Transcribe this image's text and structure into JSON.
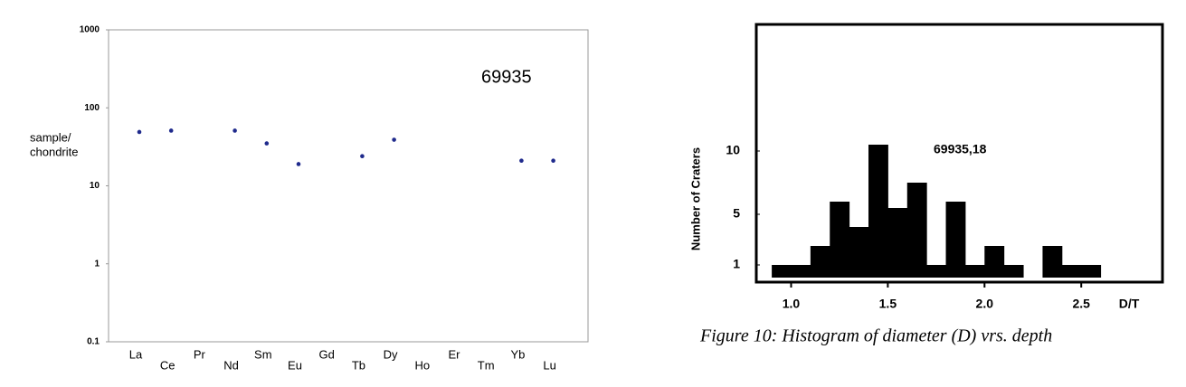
{
  "chart_data": [
    {
      "type": "scatter",
      "log_y": true,
      "ylabel": [
        "sample/",
        "chondrite"
      ],
      "annotation": "69935",
      "categories": [
        "La",
        "Ce",
        "Pr",
        "Nd",
        "Sm",
        "Eu",
        "Gd",
        "Tb",
        "Dy",
        "Ho",
        "Er",
        "Tm",
        "Yb",
        "Lu"
      ],
      "values": [
        49,
        51,
        null,
        51,
        35,
        19,
        null,
        24,
        39,
        null,
        null,
        null,
        21,
        21
      ],
      "color": "#1f2a8c",
      "ylim": [
        0.1,
        1000
      ],
      "yticks": [
        0.1,
        1,
        10,
        100,
        1000
      ]
    },
    {
      "type": "histogram",
      "ylabel": "Number of Craters",
      "xlabel": "D/T",
      "annotation": "69935,18",
      "caption": "Figure 10:  Histogram of diameter (D) vrs. depth",
      "bins": [
        0.9,
        1,
        1.1,
        1.2,
        1.3,
        1.4,
        1.5,
        1.6,
        1.7,
        1.8,
        1.9,
        2,
        2.1,
        2.2,
        2.3,
        2.4,
        2.5,
        2.6
      ],
      "values": [
        1,
        1,
        2.5,
        6,
        4,
        10.5,
        5.5,
        7.5,
        1,
        6,
        1,
        2.5,
        1,
        0,
        2.5,
        1,
        1
      ],
      "color": "#000000",
      "xlim": [
        0.82,
        2.92
      ],
      "ylim": [
        0,
        20
      ],
      "xticks": [
        {
          "value": 1,
          "label": "1.0"
        },
        1.5,
        {
          "value": 2,
          "label": "2.0"
        },
        2.5
      ],
      "yticks": [
        1,
        5,
        10
      ]
    }
  ]
}
